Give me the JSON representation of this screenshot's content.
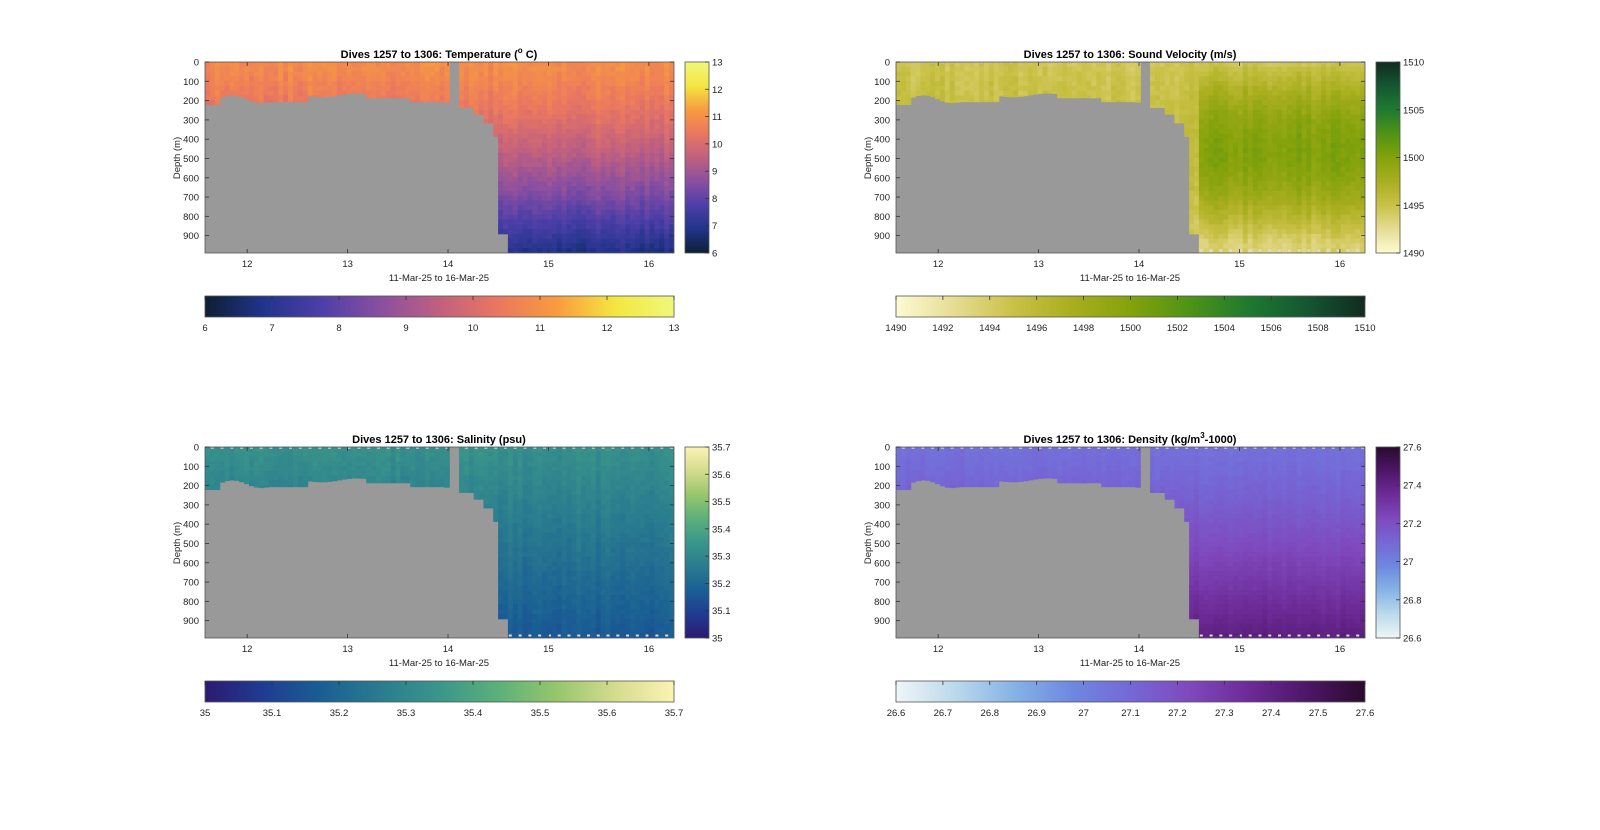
{
  "colors": {
    "land": "#999999",
    "background": "#ffffff"
  },
  "chart_data": [
    {
      "type": "heatmap",
      "id": "temperature",
      "title": "Dives 1257 to 1306: Temperature (",
      "title_sup": "o",
      "title_tail": " C)",
      "xlabel": "11-Mar-25 to 16-Mar-25",
      "ylabel": "Depth (m)",
      "x_ticks": [
        12,
        13,
        14,
        15,
        16
      ],
      "xlim": [
        11.58,
        16.25
      ],
      "y_ticks": [
        0,
        100,
        200,
        300,
        400,
        500,
        600,
        700,
        800,
        900
      ],
      "ylim": [
        0,
        990
      ],
      "colorbar_ticks": [
        6,
        7,
        8,
        9,
        10,
        11,
        12,
        13
      ],
      "colorbar_labels": [
        "6",
        "7",
        "8",
        "9",
        "10",
        "11",
        "12",
        "13"
      ],
      "clim": [
        6,
        13
      ],
      "colormap": [
        "#0d1f33",
        "#21348a",
        "#4d3fa8",
        "#8a4fa0",
        "#c0607f",
        "#ea7760",
        "#f99b3f",
        "#f4e640",
        "#eff87a"
      ],
      "surface_value": 10.9,
      "deep_value": 6.8,
      "gradient_power": 1.4,
      "cell_noise": 0.45,
      "seafloor_top_dashes": false
    },
    {
      "type": "heatmap",
      "id": "sound-velocity",
      "title": "Dives 1257 to 1306: Sound Velocity (m/s)",
      "title_sup": "",
      "title_tail": "",
      "xlabel": "11-Mar-25 to 16-Mar-25",
      "ylabel": "Depth (m)",
      "x_ticks": [
        12,
        13,
        14,
        15,
        16
      ],
      "xlim": [
        11.58,
        16.25
      ],
      "y_ticks": [
        0,
        100,
        200,
        300,
        400,
        500,
        600,
        700,
        800,
        900
      ],
      "ylim": [
        0,
        990
      ],
      "colorbar_ticks": [
        1490,
        1495,
        1500,
        1505,
        1510
      ],
      "colorbar_labels": [
        "1490",
        "1495",
        "1500",
        "1505",
        "1510"
      ],
      "colorbar_h_ticks": [
        1490,
        1492,
        1494,
        1496,
        1498,
        1500,
        1502,
        1504,
        1506,
        1508,
        1510
      ],
      "colorbar_h_labels": [
        "1490",
        "1492",
        "1494",
        "1496",
        "1498",
        "1500",
        "1502",
        "1504",
        "1506",
        "1508",
        "1510"
      ],
      "clim": [
        1490,
        1510
      ],
      "colormap": [
        "#fdfad4",
        "#e6dc93",
        "#c9c147",
        "#a9ae1f",
        "#84a20b",
        "#4f9316",
        "#1f7a2f",
        "#145732",
        "#112b20"
      ],
      "surface_value": 1494.6,
      "deep_value": 1493.5,
      "mid_bump": 6.0,
      "gradient_power": 1.0,
      "cell_noise": 1.4,
      "seafloor_top_dashes": true
    },
    {
      "type": "heatmap",
      "id": "salinity",
      "title": "Dives 1257 to 1306: Salinity (psu)",
      "title_sup": "",
      "title_tail": "",
      "xlabel": "11-Mar-25 to 16-Mar-25",
      "ylabel": "Depth (m)",
      "x_ticks": [
        12,
        13,
        14,
        15,
        16
      ],
      "xlim": [
        11.58,
        16.25
      ],
      "y_ticks": [
        0,
        100,
        200,
        300,
        400,
        500,
        600,
        700,
        800,
        900
      ],
      "ylim": [
        0,
        990
      ],
      "colorbar_ticks": [
        35,
        35.1,
        35.2,
        35.3,
        35.4,
        35.5,
        35.6,
        35.7
      ],
      "colorbar_labels": [
        "35",
        "35.1",
        "35.2",
        "35.3",
        "35.4",
        "35.5",
        "35.6",
        "35.7"
      ],
      "clim": [
        35,
        35.7
      ],
      "colormap": [
        "#2b1a70",
        "#1f3c92",
        "#1a5f94",
        "#2a7c8f",
        "#3a968a",
        "#5bb07a",
        "#96c66c",
        "#d4dc8e",
        "#fbf3b2"
      ],
      "surface_value": 35.33,
      "deep_value": 35.16,
      "gradient_power": 1.0,
      "cell_noise": 0.035,
      "seafloor_top_dashes": true
    },
    {
      "type": "heatmap",
      "id": "density",
      "title": "Dives 1257 to 1306: Density (kg/m",
      "title_sup": "3",
      "title_tail": "-1000)",
      "xlabel": "11-Mar-25 to 16-Mar-25",
      "ylabel": "Depth (m)",
      "x_ticks": [
        12,
        13,
        14,
        15,
        16
      ],
      "xlim": [
        11.58,
        16.25
      ],
      "y_ticks": [
        0,
        100,
        200,
        300,
        400,
        500,
        600,
        700,
        800,
        900
      ],
      "ylim": [
        0,
        990
      ],
      "colorbar_ticks": [
        26.6,
        26.8,
        27,
        27.2,
        27.4,
        27.6
      ],
      "colorbar_labels": [
        "26.6",
        "26.8",
        "27",
        "27.2",
        "27.4",
        "27.6"
      ],
      "colorbar_h_ticks": [
        26.6,
        26.7,
        26.8,
        26.9,
        27,
        27.1,
        27.2,
        27.3,
        27.4,
        27.5,
        27.6
      ],
      "colorbar_h_labels": [
        "26.6",
        "26.7",
        "26.8",
        "26.9",
        "27",
        "27.1",
        "27.2",
        "27.3",
        "27.4",
        "27.5",
        "27.6"
      ],
      "clim": [
        26.6,
        27.6
      ],
      "colormap": [
        "#eef6f6",
        "#bcd9ec",
        "#86b3e6",
        "#6e88e0",
        "#7568d6",
        "#7f49bd",
        "#6d2b98",
        "#4e1668",
        "#2a0a2c"
      ],
      "surface_value": 27.07,
      "deep_value": 27.42,
      "gradient_power": 1.3,
      "cell_noise": 0.03,
      "seafloor_top_dashes": true
    }
  ]
}
